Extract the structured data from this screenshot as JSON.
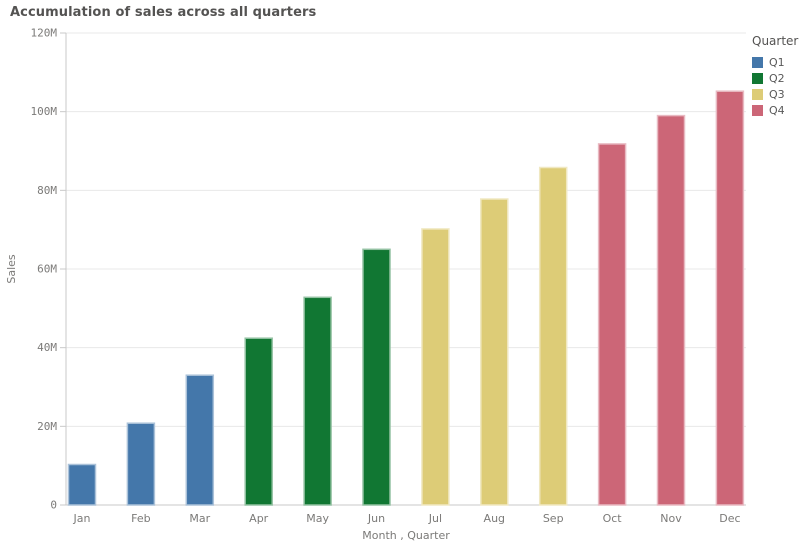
{
  "title": "Accumulation of sales across all quarters",
  "legend": {
    "title": "Quarter",
    "items": [
      {
        "label": "Q1",
        "color": "#4477aa"
      },
      {
        "label": "Q2",
        "color": "#117733"
      },
      {
        "label": "Q3",
        "color": "#ddcc77"
      },
      {
        "label": "Q4",
        "color": "#cc6677"
      }
    ]
  },
  "chart_data": {
    "type": "bar",
    "title": "Accumulation of sales across all quarters",
    "xlabel": "Month , Quarter",
    "ylabel": "Sales",
    "unit": "M",
    "ylim_millions": [
      0,
      120
    ],
    "ytick_interval_millions": 20,
    "ytick_labels": [
      "0",
      "20M",
      "40M",
      "60M",
      "80M",
      "100M",
      "120M"
    ],
    "grid": true,
    "legend_position": "top-right",
    "categories": [
      "Jan",
      "Feb",
      "Mar",
      "Apr",
      "May",
      "Jun",
      "Jul",
      "Aug",
      "Sep",
      "Oct",
      "Nov",
      "Dec"
    ],
    "values_millions": [
      10.3,
      20.8,
      33.0,
      42.4,
      52.8,
      65.0,
      70.2,
      77.8,
      85.8,
      91.8,
      99.0,
      105.2
    ],
    "bar_quarters": [
      "Q1",
      "Q1",
      "Q1",
      "Q2",
      "Q2",
      "Q2",
      "Q3",
      "Q3",
      "Q3",
      "Q4",
      "Q4",
      "Q4"
    ],
    "quarter_colors": {
      "Q1": "#4477aa",
      "Q2": "#117733",
      "Q3": "#ddcc77",
      "Q4": "#cc6677"
    }
  }
}
